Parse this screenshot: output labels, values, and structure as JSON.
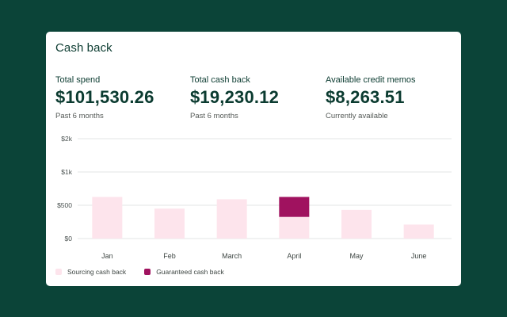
{
  "card": {
    "title": "Cash back"
  },
  "metrics": [
    {
      "label": "Total spend",
      "value": "$101,530.26",
      "sub": "Past 6 months"
    },
    {
      "label": "Total cash back",
      "value": "$19,230.12",
      "sub": "Past 6 months"
    },
    {
      "label": "Available credit memos",
      "value": "$8,263.51",
      "sub": "Currently available"
    }
  ],
  "colors": {
    "background": "#0b4438",
    "sourcing": "#fde4ec",
    "guaranteed": "#a0125f",
    "grid": "#e3e6e4"
  },
  "legend": {
    "sourcing": "Sourcing cash back",
    "guaranteed": "Guaranteed cash back"
  },
  "chart_data": {
    "type": "bar",
    "stacked": true,
    "categories": [
      "Jan",
      "Feb",
      "March",
      "April",
      "May",
      "June"
    ],
    "y_ticks": [
      "$0",
      "$500",
      "$1k",
      "$2k"
    ],
    "series": [
      {
        "name": "Sourcing cash back",
        "values": [
          1.25,
          0.9,
          1.18,
          0.65,
          0.86,
          0.42
        ]
      },
      {
        "name": "Guaranteed cash back",
        "values": [
          0,
          0,
          0,
          0.6,
          0,
          0
        ]
      }
    ],
    "y_scale_note": "values in tick-index units; ticks evenly spaced",
    "grid": true
  }
}
